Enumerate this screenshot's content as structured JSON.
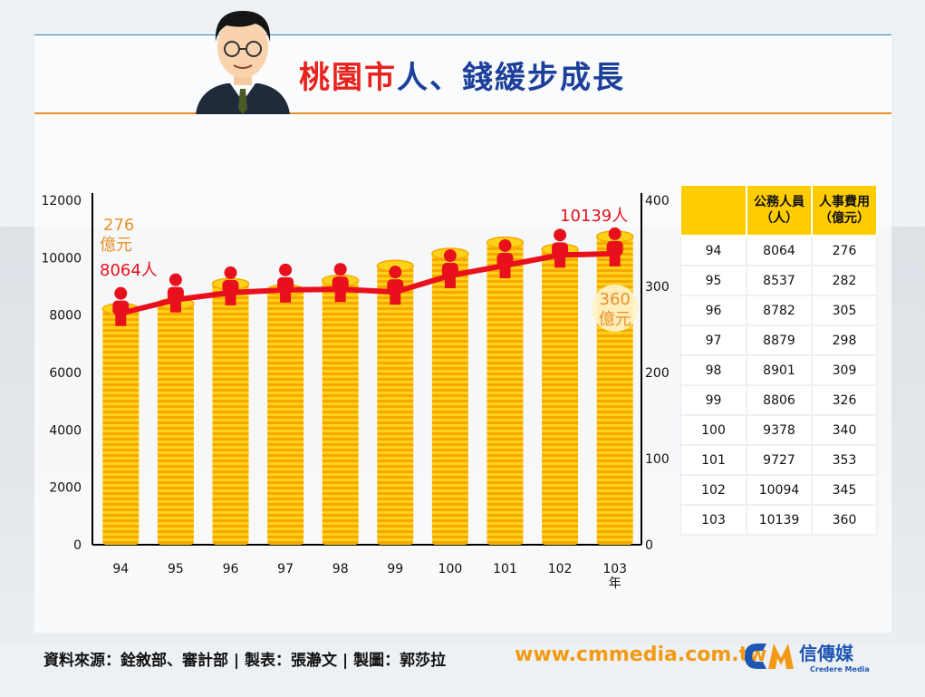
{
  "header": {
    "title_red": "桃園市",
    "title_blue": "人、錢緩步成長"
  },
  "footer": {
    "source": "資料來源：銓敘部、審計部 | 製表：張瀞文 | 製圖：郭莎拉",
    "url": "www.cmmedia.com.tw",
    "logo_text": "信傳媒",
    "logo_sub": "Credere Media"
  },
  "colors": {
    "coin": "#f6a800",
    "coin_light": "#ffd21a",
    "line": "#e8101c",
    "person": "#e8101c",
    "header_yellow": "#ffcc00"
  },
  "chart_data": {
    "type": "bar",
    "categories": [
      "94",
      "95",
      "96",
      "97",
      "98",
      "99",
      "100",
      "101",
      "102",
      "103"
    ],
    "x_unit_label": "年",
    "series": [
      {
        "name": "人事費用",
        "axis": "right",
        "kind": "bar",
        "values": [
          276,
          282,
          305,
          298,
          309,
          326,
          340,
          353,
          345,
          360
        ]
      },
      {
        "name": "公務人員",
        "axis": "left",
        "kind": "line",
        "values": [
          8064,
          8537,
          8782,
          8879,
          8901,
          8806,
          9378,
          9727,
          10094,
          10139
        ]
      }
    ],
    "left_axis": {
      "ticks": [
        "12000",
        "10000",
        "8000",
        "6000",
        "4000",
        "2000",
        "0"
      ],
      "ylim": [
        0,
        12000
      ]
    },
    "right_axis": {
      "ticks": [
        "400",
        "300",
        "200",
        "100",
        "0"
      ],
      "ylim": [
        0,
        400
      ]
    },
    "annotations": {
      "first_cost_value": "276",
      "first_cost_unit": "億元",
      "first_people": "8064人",
      "last_people": "10139人",
      "last_cost_value": "360",
      "last_cost_unit": "億元"
    }
  },
  "table": {
    "headers": [
      [
        "",
        ""
      ],
      [
        "公務人員",
        "（人）"
      ],
      [
        "人事費用",
        "（億元）"
      ]
    ],
    "rows": [
      [
        "94",
        "8064",
        "276"
      ],
      [
        "95",
        "8537",
        "282"
      ],
      [
        "96",
        "8782",
        "305"
      ],
      [
        "97",
        "8879",
        "298"
      ],
      [
        "98",
        "8901",
        "309"
      ],
      [
        "99",
        "8806",
        "326"
      ],
      [
        "100",
        "9378",
        "340"
      ],
      [
        "101",
        "9727",
        "353"
      ],
      [
        "102",
        "10094",
        "345"
      ],
      [
        "103",
        "10139",
        "360"
      ]
    ]
  }
}
